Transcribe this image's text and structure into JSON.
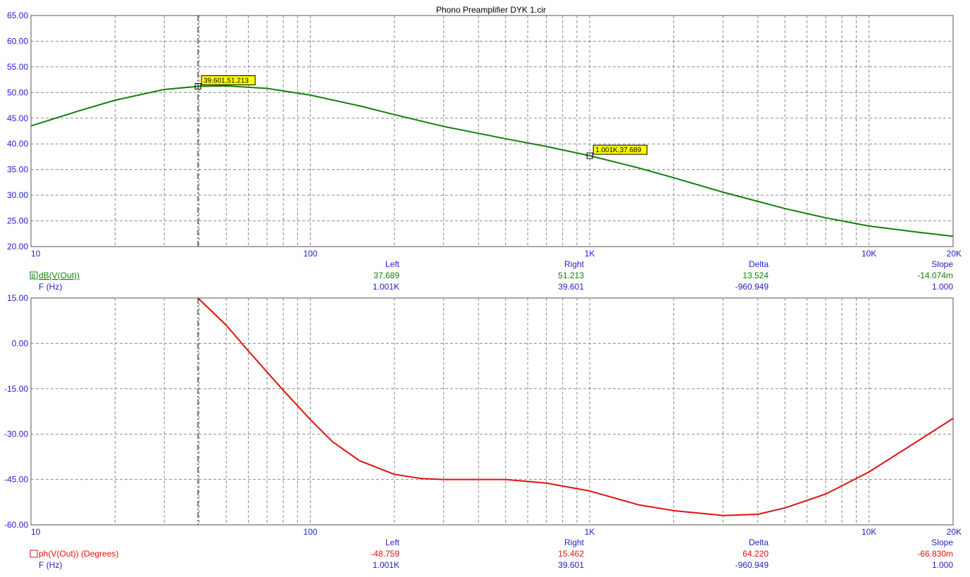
{
  "title": "Phono Preamplifier DYK 1.cir",
  "colors": {
    "axis_text": "#2222cc",
    "grid": "#8a8a8a",
    "magnitude": "#108010",
    "phase": "#dd1111",
    "label_bg": "#ffff00"
  },
  "chart_data": [
    {
      "type": "line",
      "x_scale": "log",
      "xlim": [
        10,
        20000
      ],
      "ylim": [
        20,
        65
      ],
      "x_ticks": [
        {
          "value": 10,
          "label": "10"
        },
        {
          "value": 100,
          "label": "100"
        },
        {
          "value": 1000,
          "label": "1K"
        },
        {
          "value": 10000,
          "label": "10K"
        },
        {
          "value": 20000,
          "label": "20K"
        }
      ],
      "y_ticks": [
        "20.00",
        "25.00",
        "30.00",
        "35.00",
        "40.00",
        "45.00",
        "50.00",
        "55.00",
        "60.00",
        "65.00"
      ],
      "grid": true,
      "series": [
        {
          "name": "dB(V(Out))",
          "x": [
            10,
            15,
            20,
            30,
            39.6,
            50,
            70,
            100,
            150,
            200,
            300,
            500,
            700,
            1000,
            1500,
            2000,
            3000,
            4000,
            5000,
            7000,
            10000,
            15000,
            20000
          ],
          "y": [
            43.5,
            46.5,
            48.5,
            50.6,
            51.2,
            51.3,
            50.8,
            49.5,
            47.4,
            45.7,
            43.4,
            41.0,
            39.5,
            37.7,
            35.3,
            33.4,
            30.6,
            28.8,
            27.4,
            25.6,
            24.0,
            22.8,
            22.0
          ]
        }
      ],
      "markers": [
        {
          "x": 39.601,
          "y": 51.213,
          "label": "39.601,51.213"
        },
        {
          "x": 1001,
          "y": 37.689,
          "label": "1.001K,37.689"
        }
      ],
      "cursor_x": 39.601,
      "readout": {
        "headers": [
          "Left",
          "Right",
          "Delta",
          "Slope"
        ],
        "row1_label": "dB(V(Out))",
        "row1": [
          "37.689",
          "51.213",
          "13.524",
          "-14.074m"
        ],
        "row2_label": "F (Hz)",
        "row2": [
          "1.001K",
          "39.601",
          "-960.949",
          "1.000"
        ]
      }
    },
    {
      "type": "line",
      "x_scale": "log",
      "xlim": [
        10,
        20000
      ],
      "ylim": [
        -60,
        15
      ],
      "x_ticks": [
        {
          "value": 10,
          "label": "10"
        },
        {
          "value": 100,
          "label": "100"
        },
        {
          "value": 1000,
          "label": "1K"
        },
        {
          "value": 10000,
          "label": "10K"
        },
        {
          "value": 20000,
          "label": "20K"
        }
      ],
      "y_ticks": [
        "-60.00",
        "-45.00",
        "-30.00",
        "-15.00",
        "0.00",
        "15.00"
      ],
      "grid": true,
      "series": [
        {
          "name": "ph(V(Out)) (Degrees)",
          "x": [
            39.6,
            50,
            60,
            70,
            80,
            100,
            120,
            150,
            200,
            250,
            300,
            400,
            500,
            700,
            1000,
            1500,
            2000,
            3000,
            4000,
            5000,
            7000,
            10000,
            15000,
            20000
          ],
          "y": [
            15.0,
            6.0,
            -2.5,
            -9.5,
            -15.5,
            -25.2,
            -32.5,
            -38.8,
            -43.3,
            -44.7,
            -45.0,
            -45.0,
            -45.0,
            -46.2,
            -48.8,
            -53.4,
            -55.3,
            -56.9,
            -56.5,
            -54.4,
            -49.8,
            -42.5,
            -32.2,
            -24.8
          ]
        }
      ],
      "cursor_x": 39.601,
      "readout": {
        "headers": [
          "Left",
          "Right",
          "Delta",
          "Slope"
        ],
        "row1_label": "ph(V(Out)) (Degrees)",
        "row1": [
          "-48.759",
          "15.462",
          "64.220",
          "-66.830m"
        ],
        "row2_label": "F (Hz)",
        "row2": [
          "1.001K",
          "39.601",
          "-960.949",
          "1.000"
        ]
      }
    }
  ]
}
